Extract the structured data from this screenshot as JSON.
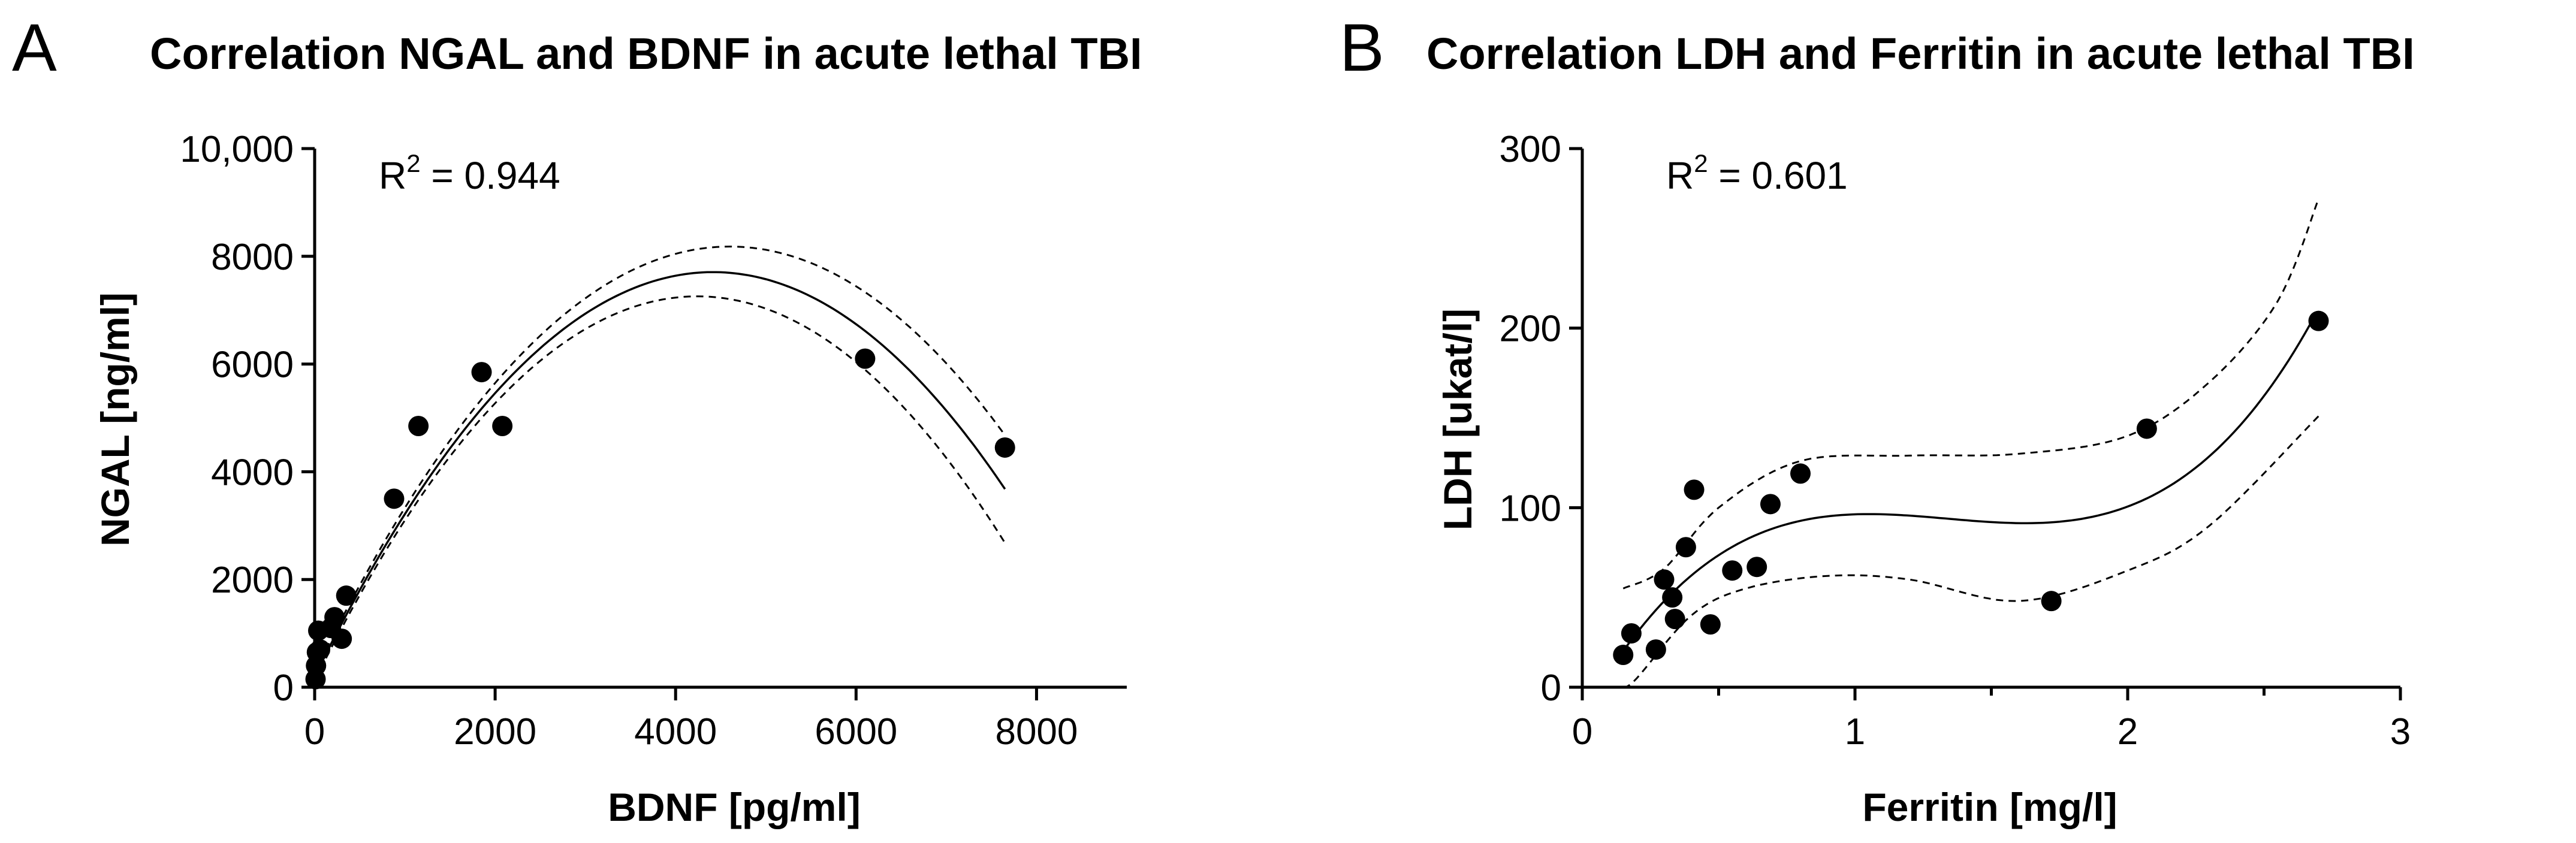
{
  "chart_data": [
    {
      "panel": "A",
      "type": "scatter",
      "title": "Correlation NGAL and BDNF in acute lethal TBI",
      "xlabel": "BDNF [pg/ml]",
      "ylabel": "NGAL [ng/ml]",
      "xlim": [
        0,
        9000
      ],
      "ylim": [
        0,
        10000
      ],
      "xticks": [
        0,
        2000,
        4000,
        6000,
        8000
      ],
      "xtick_labels": [
        "0",
        "2000",
        "4000",
        "6000",
        "8000"
      ],
      "yticks": [
        0,
        2000,
        4000,
        6000,
        8000,
        10000
      ],
      "ytick_labels": [
        "0",
        "2000",
        "4000",
        "6000",
        "8000",
        "10,000"
      ],
      "r2_label": "R",
      "r2_sup": "2",
      "r2_value": " = 0.944",
      "points": [
        [
          10,
          150
        ],
        [
          15,
          400
        ],
        [
          25,
          650
        ],
        [
          40,
          1050
        ],
        [
          60,
          700
        ],
        [
          180,
          1100
        ],
        [
          220,
          1300
        ],
        [
          300,
          900
        ],
        [
          350,
          1700
        ],
        [
          880,
          3500
        ],
        [
          1150,
          4850
        ],
        [
          1850,
          5850
        ],
        [
          2080,
          4850
        ],
        [
          6100,
          6100
        ],
        [
          7650,
          4450
        ]
      ],
      "fit": {
        "model": "quadratic",
        "coefficients": [
          200,
          3.4,
          -0.000385
        ],
        "x_range": [
          0,
          7650
        ]
      },
      "ci_band": {
        "x_range": [
          0,
          7650
        ],
        "width_near_zero": 80,
        "width_at_far_end": 1000
      }
    },
    {
      "panel": "B",
      "type": "scatter",
      "title": "Correlation LDH and Ferritin in acute lethal TBI",
      "xlabel": "Ferritin [mg/l]",
      "ylabel": "LDH [ukat/l]",
      "xlim": [
        0,
        3
      ],
      "ylim": [
        0,
        300
      ],
      "xticks": [
        0,
        1,
        2,
        3
      ],
      "xtick_labels": [
        "0",
        "1",
        "2",
        "3"
      ],
      "x_minor_ticks": [
        0.5,
        1.5,
        2.5
      ],
      "yticks": [
        0,
        100,
        200,
        300
      ],
      "ytick_labels": [
        "0",
        "100",
        "200",
        "300"
      ],
      "r2_label": "R",
      "r2_sup": "2",
      "r2_value": " = 0.601",
      "points": [
        [
          0.15,
          18
        ],
        [
          0.18,
          30
        ],
        [
          0.27,
          21
        ],
        [
          0.3,
          60
        ],
        [
          0.33,
          50
        ],
        [
          0.34,
          38
        ],
        [
          0.38,
          78
        ],
        [
          0.41,
          110
        ],
        [
          0.47,
          35
        ],
        [
          0.55,
          65
        ],
        [
          0.64,
          67
        ],
        [
          0.69,
          102
        ],
        [
          0.8,
          119
        ],
        [
          1.72,
          48
        ],
        [
          2.07,
          144
        ],
        [
          2.7,
          204
        ]
      ],
      "fit": {
        "model": "cubic",
        "x_range": [
          0.15,
          2.7
        ]
      },
      "ci_upper": [
        [
          0.15,
          55
        ],
        [
          0.3,
          66
        ],
        [
          0.5,
          100
        ],
        [
          0.8,
          126
        ],
        [
          1.2,
          129
        ],
        [
          1.6,
          130
        ],
        [
          2.0,
          140
        ],
        [
          2.3,
          170
        ],
        [
          2.55,
          215
        ],
        [
          2.7,
          272
        ]
      ],
      "ci_lower": [
        [
          0.15,
          0
        ],
        [
          0.2,
          5
        ],
        [
          0.4,
          40
        ],
        [
          0.6,
          55
        ],
        [
          0.9,
          62
        ],
        [
          1.2,
          60
        ],
        [
          1.6,
          48
        ],
        [
          2.0,
          65
        ],
        [
          2.3,
          90
        ],
        [
          2.7,
          151
        ]
      ]
    }
  ]
}
